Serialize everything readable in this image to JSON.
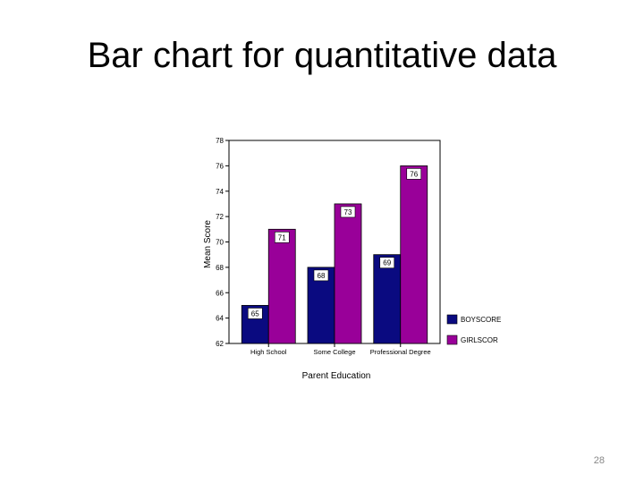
{
  "slide": {
    "title": "Bar chart for quantitative data",
    "page_number": "28"
  },
  "chart_data": {
    "type": "bar",
    "title": "",
    "xlabel": "Parent Education",
    "ylabel": "Mean Score",
    "categories": [
      "High School",
      "Some College",
      "Professional Degree"
    ],
    "series": [
      {
        "name": "BOYSCORE",
        "values": [
          65,
          68,
          69
        ],
        "color": "#0a0a80"
      },
      {
        "name": "GIRLSCOR",
        "values": [
          71,
          73,
          76
        ],
        "color": "#990099"
      }
    ],
    "yticks": [
      "78",
      "76",
      "74",
      "72",
      "70",
      "68",
      "66",
      "64",
      "62"
    ],
    "ylim": [
      62,
      78
    ],
    "grid": false,
    "legend_position": "bottom-right"
  }
}
